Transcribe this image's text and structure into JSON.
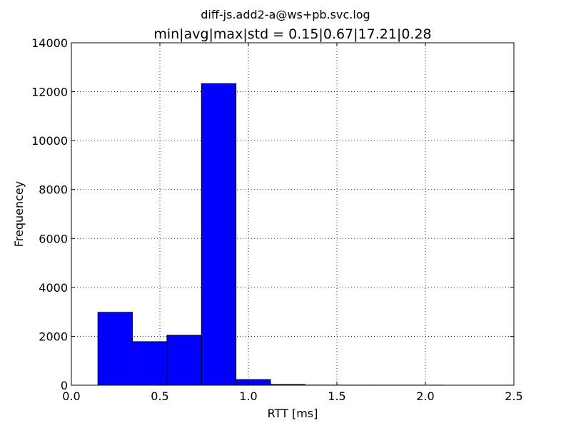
{
  "chart_data": {
    "type": "bar",
    "suptitle": "diff-js.add2-a@ws+pb.svc.log",
    "title": "min|avg|max|std = 0.15|0.67|17.21|0.28",
    "xlabel": "RTT [ms]",
    "ylabel": "Frequencey",
    "xlim": [
      0.0,
      2.5
    ],
    "ylim": [
      0,
      14000
    ],
    "xticks": [
      "0.0",
      "0.5",
      "1.0",
      "1.5",
      "2.0",
      "2.5"
    ],
    "yticks": [
      "0",
      "2000",
      "4000",
      "6000",
      "8000",
      "10000",
      "12000",
      "14000"
    ],
    "grid": true,
    "bins": [
      {
        "x0": 0.15,
        "x1": 0.345,
        "value": 2980
      },
      {
        "x0": 0.345,
        "x1": 0.54,
        "value": 1780
      },
      {
        "x0": 0.54,
        "x1": 0.735,
        "value": 2040
      },
      {
        "x0": 0.735,
        "x1": 0.93,
        "value": 12330
      },
      {
        "x0": 0.93,
        "x1": 1.125,
        "value": 230
      },
      {
        "x0": 1.125,
        "x1": 1.32,
        "value": 30
      },
      {
        "x0": 1.32,
        "x1": 1.515,
        "value": 5
      },
      {
        "x0": 1.515,
        "x1": 1.71,
        "value": 3
      },
      {
        "x0": 1.71,
        "x1": 1.905,
        "value": 2
      },
      {
        "x0": 1.905,
        "x1": 2.1,
        "value": 2
      }
    ]
  }
}
